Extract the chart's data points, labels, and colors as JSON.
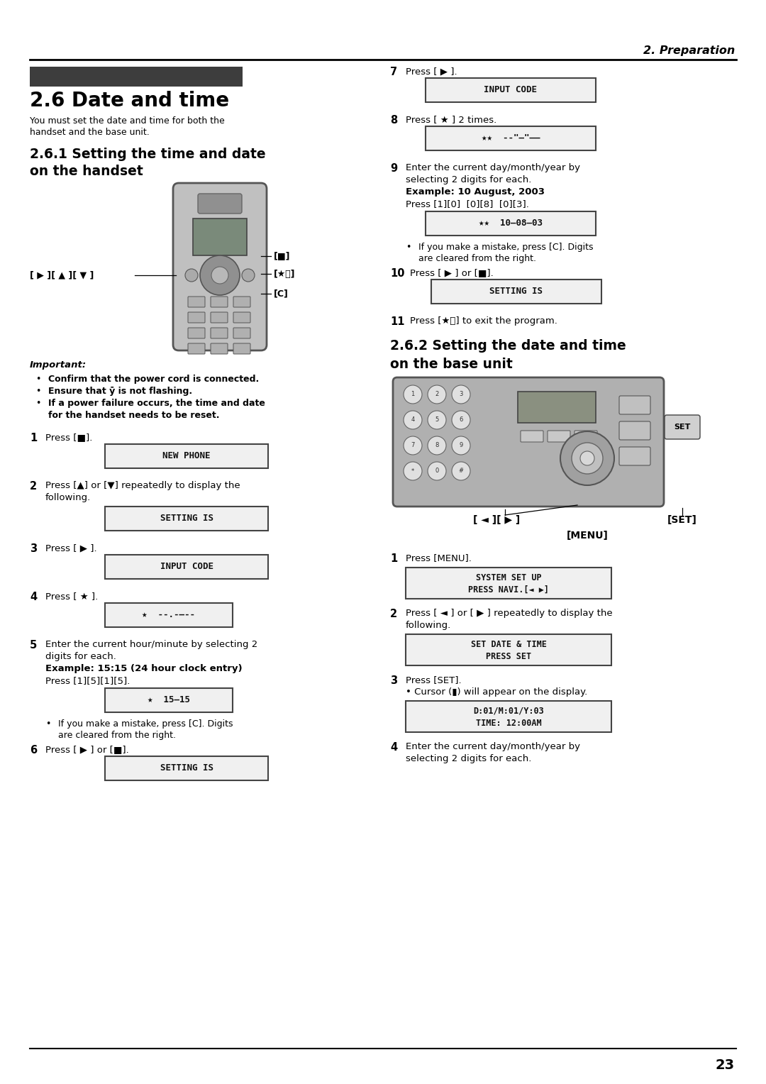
{
  "page_title": "2. Preparation",
  "section_title": "2.6 Date and time",
  "section_intro_1": "You must set the date and time for both the",
  "section_intro_2": "handset and the base unit.",
  "subsection1_line1": "2.6.1 Setting the time and date",
  "subsection1_line2": "on the handset",
  "subsection2_line1": "2.6.2 Setting the date and time",
  "subsection2_line2": "on the base unit",
  "bg_color": "#ffffff",
  "page_number": "23",
  "header_bar_color": "#3d3d3d",
  "lcd_face": "#f5f5f5",
  "lcd_edge": "#444444"
}
